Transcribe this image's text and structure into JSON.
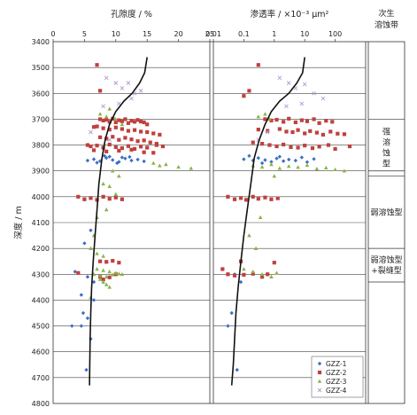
{
  "chart_data": [
    {
      "type": "scatter",
      "xlabel": "孔隙度 / %",
      "ylabel": "深度 / m",
      "xlim": [
        0,
        25
      ],
      "ylim": [
        3400,
        4800
      ],
      "xticks": [
        "0",
        "5",
        "10",
        "15",
        "20",
        "25"
      ],
      "yticks": [
        "3400",
        "3500",
        "3600",
        "3700",
        "3800",
        "3900",
        "4000",
        "4100",
        "4200",
        "4300",
        "4400",
        "4500",
        "4600",
        "4700",
        "4800"
      ],
      "trend_curve": {
        "x": [
          15,
          14.6,
          13.8,
          12.6,
          11.3,
          10.0,
          9.0,
          8.3,
          7.8,
          7.3,
          7.0,
          6.7,
          6.4,
          6.15,
          6.0,
          5.9,
          5.85,
          5.8
        ],
        "y": [
          3460,
          3520,
          3560,
          3600,
          3630,
          3670,
          3720,
          3780,
          3850,
          3950,
          4050,
          4150,
          4250,
          4350,
          4450,
          4550,
          4650,
          4730
        ]
      },
      "series": [
        {
          "name": "GZZ-1",
          "color": "#3b6fc4",
          "marker": "diamond",
          "x": [
            5.5,
            6.5,
            7.5,
            8.5,
            9.5,
            10.5,
            11.5,
            12.5,
            13.5,
            14.5,
            9.0,
            11.0,
            7.0,
            8.2,
            10.2,
            12.2,
            6.0,
            5.0,
            3.5,
            5.5,
            6.5,
            4.5,
            6.5,
            4.8,
            5.5,
            4.5,
            6.0,
            3.0,
            5.3
          ],
          "y": [
            3860,
            3855,
            3862,
            3850,
            3858,
            3865,
            3852,
            3860,
            3856,
            3863,
            3845,
            3848,
            3868,
            3842,
            3870,
            3846,
            4130,
            4180,
            4290,
            4310,
            4330,
            4380,
            4400,
            4450,
            4470,
            4500,
            4550,
            4500,
            4670
          ]
        },
        {
          "name": "GZZ-2",
          "color": "#c0403d",
          "marker": "square",
          "x": [
            7.5,
            8.0,
            8.5,
            9.0,
            9.5,
            10.0,
            10.5,
            11.0,
            11.5,
            12.0,
            12.5,
            13.0,
            13.5,
            14.0,
            14.5,
            15.0,
            6.5,
            7.0,
            8.0,
            9.0,
            10.0,
            11.0,
            12.0,
            13.0,
            14.0,
            15.0,
            16.0,
            17.0,
            7.5,
            8.5,
            9.5,
            10.5,
            11.5,
            12.5,
            13.5,
            14.5,
            15.5,
            16.5,
            5.5,
            6.0,
            7.0,
            8.0,
            9.0,
            10.0,
            11.0,
            12.0,
            13.0,
            14.0,
            15.0,
            16.5,
            17.5,
            6.5,
            8.5,
            10.5,
            12.5,
            14.5,
            16.0,
            4.0,
            5.0,
            6.0,
            7.0,
            8.0,
            9.0,
            10.0,
            11.0,
            7.5,
            8.5,
            9.5,
            10.5,
            7.5,
            8.0,
            9.0,
            4.0,
            10.0,
            7.0,
            7.5
          ],
          "y": [
            3700,
            3705,
            3702,
            3710,
            3698,
            3712,
            3704,
            3708,
            3700,
            3715,
            3706,
            3710,
            3703,
            3709,
            3712,
            3720,
            3730,
            3728,
            3735,
            3740,
            3732,
            3738,
            3745,
            3742,
            3748,
            3750,
            3755,
            3760,
            3770,
            3775,
            3768,
            3780,
            3772,
            3778,
            3785,
            3782,
            3790,
            3795,
            3800,
            3805,
            3802,
            3810,
            3798,
            3808,
            3812,
            3804,
            3815,
            3806,
            3810,
            3800,
            3805,
            3820,
            3825,
            3822,
            3818,
            3828,
            3830,
            4000,
            4010,
            4005,
            4012,
            4000,
            4008,
            4003,
            4010,
            4250,
            4252,
            4248,
            4255,
            4310,
            4320,
            4312,
            4295,
            4300,
            3490,
            3590
          ]
        },
        {
          "name": "GZZ-3",
          "color": "#8ab34a",
          "marker": "triangle",
          "x": [
            7.5,
            8.5,
            9.0,
            10.0,
            11.0,
            16.0,
            17.0,
            18.0,
            20.0,
            22.0,
            9.5,
            10.5,
            8.0,
            9.0,
            10.0,
            8.5,
            7.0,
            8.0,
            9.0,
            10.0,
            11.0,
            6.5,
            7.5,
            8.5,
            9.5,
            10.5,
            7.5,
            8.0,
            8.5,
            9.0,
            7.0,
            6.5,
            6.0,
            7.0,
            8.0,
            6.0
          ],
          "y": [
            3680,
            3690,
            3660,
            3700,
            3720,
            3870,
            3880,
            3875,
            3885,
            3890,
            3900,
            3920,
            3950,
            3960,
            3990,
            4050,
            4280,
            4285,
            4290,
            4295,
            4300,
            4300,
            4305,
            4310,
            4302,
            4298,
            4320,
            4330,
            4340,
            4350,
            4080,
            4150,
            4200,
            4220,
            4230,
            4390
          ]
        },
        {
          "name": "GZZ-4",
          "color": "#b29ad6",
          "marker": "x",
          "x": [
            8.5,
            10.0,
            11.0,
            12.0,
            13.0,
            12.5,
            10.5,
            8.0,
            6.0,
            9.0,
            14.0
          ],
          "y": [
            3540,
            3560,
            3580,
            3560,
            3600,
            3620,
            3640,
            3650,
            3750,
            3780,
            3590
          ]
        }
      ]
    },
    {
      "type": "scatter",
      "xlabel": "渗透率 / ×10⁻³ μm²",
      "xscale": "log",
      "xlim": [
        0.01,
        1000
      ],
      "ylim": [
        3400,
        4800
      ],
      "xticks": [
        "0.01",
        "0.1",
        "1",
        "10",
        "100"
      ],
      "trend_curve": {
        "x": [
          10,
          8.5,
          5.5,
          3,
          1.5,
          0.8,
          0.5,
          0.32,
          0.22,
          0.17,
          0.13,
          0.1,
          0.08,
          0.065,
          0.055,
          0.05,
          0.045,
          0.04
        ],
        "y": [
          3460,
          3520,
          3560,
          3600,
          3630,
          3670,
          3720,
          3780,
          3850,
          3950,
          4050,
          4150,
          4250,
          4350,
          4450,
          4550,
          4650,
          4730
        ]
      },
      "series": [
        {
          "name": "GZZ-1",
          "color": "#3b6fc4",
          "marker": "diamond",
          "x": [
            0.1,
            0.2,
            0.3,
            0.5,
            0.8,
            1.2,
            2,
            3,
            5,
            8,
            12,
            20,
            0.15,
            0.4,
            1.5,
            0.05,
            0.04,
            0.03,
            0.08,
            0.06
          ],
          "y": [
            3855,
            3860,
            3850,
            3858,
            3865,
            3852,
            3862,
            3856,
            3860,
            3848,
            3866,
            3854,
            3842,
            3870,
            3845,
            4300,
            4450,
            4500,
            4330,
            4670
          ]
        },
        {
          "name": "GZZ-2",
          "color": "#c0403d",
          "marker": "square",
          "x": [
            0.5,
            0.8,
            1.2,
            2,
            3,
            5,
            8,
            12,
            20,
            30,
            50,
            80,
            0.3,
            0.6,
            1.5,
            2.5,
            4,
            6,
            10,
            15,
            25,
            40,
            70,
            120,
            200,
            0.2,
            0.4,
            0.7,
            1.2,
            2,
            3.5,
            6,
            10,
            18,
            30,
            60,
            100,
            300,
            0.03,
            0.05,
            0.08,
            0.12,
            0.2,
            0.3,
            0.5,
            0.8,
            1.3,
            0.03,
            0.05,
            0.1,
            0.2,
            0.4,
            0.6,
            1,
            0.08,
            0.02,
            0.3,
            0.15,
            0.1
          ],
          "y": [
            3700,
            3705,
            3702,
            3710,
            3698,
            3712,
            3704,
            3708,
            3700,
            3715,
            3706,
            3710,
            3740,
            3745,
            3738,
            3748,
            3750,
            3742,
            3755,
            3746,
            3752,
            3760,
            3748,
            3756,
            3758,
            3790,
            3795,
            3800,
            3805,
            3798,
            3808,
            3810,
            3802,
            3812,
            3806,
            3800,
            3815,
            3805,
            4000,
            4010,
            4005,
            4012,
            4000,
            4008,
            4003,
            4010,
            4006,
            4300,
            4305,
            4302,
            4298,
            4310,
            4300,
            4255,
            4250,
            4280,
            3490,
            3590,
            3610
          ]
        },
        {
          "name": "GZZ-3",
          "color": "#8ab34a",
          "marker": "triangle",
          "x": [
            0.2,
            0.4,
            0.8,
            1.5,
            3,
            6,
            12,
            25,
            50,
            100,
            200,
            0.1,
            0.2,
            0.4,
            0.8,
            1.2,
            0.3,
            0.5,
            0.7,
            1.0,
            0.15,
            0.25,
            0.35
          ],
          "y": [
            3880,
            3885,
            3875,
            3890,
            3882,
            3886,
            3878,
            3892,
            3888,
            3895,
            3900,
            4280,
            4290,
            4300,
            4310,
            4295,
            3690,
            3680,
            3700,
            3920,
            4150,
            4200,
            4080
          ]
        },
        {
          "name": "GZZ-4",
          "color": "#b29ad6",
          "marker": "x",
          "x": [
            1.5,
            3,
            5,
            10,
            20,
            40,
            8,
            2.5,
            0.6,
            0.3
          ],
          "y": [
            3540,
            3560,
            3580,
            3565,
            3600,
            3620,
            3640,
            3650,
            3750,
            3780
          ]
        }
      ]
    }
  ],
  "zones": {
    "header": "次生\n溶蚀带",
    "labels": [
      {
        "text": "强\n溶\n蚀\n型",
        "top": 3700,
        "bottom": 3920
      },
      {
        "text": "弱溶蚀型",
        "top": 3920,
        "bottom": 4200
      },
      {
        "text": "弱溶蚀型\n+裂缝型",
        "top": 4200,
        "bottom": 4330
      }
    ],
    "boundaries": [
      3700,
      3900,
      3920,
      4200,
      4330
    ]
  },
  "legend": {
    "items": [
      "GZZ-1",
      "GZZ-2",
      "GZZ-3",
      "GZZ-4"
    ]
  }
}
